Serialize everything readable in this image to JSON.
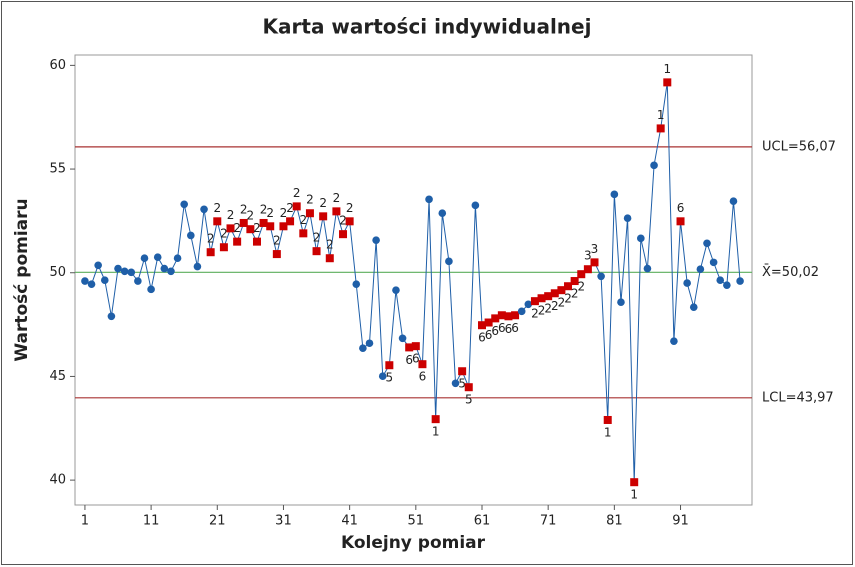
{
  "chart_data": {
    "type": "control",
    "title": "Karta wartości indywidualnej",
    "xlabel": "Kolejny pomiar",
    "ylabel": "Wartość pomiaru",
    "x": [
      1,
      2,
      3,
      4,
      5,
      6,
      7,
      8,
      9,
      10,
      11,
      12,
      13,
      14,
      15,
      16,
      17,
      18,
      19,
      20,
      21,
      22,
      23,
      24,
      25,
      26,
      27,
      28,
      29,
      30,
      31,
      32,
      33,
      34,
      35,
      36,
      37,
      38,
      39,
      40,
      41,
      42,
      43,
      44,
      45,
      46,
      47,
      48,
      49,
      50,
      51,
      52,
      53,
      54,
      55,
      56,
      57,
      58,
      59,
      60,
      61,
      62,
      63,
      64,
      65,
      66,
      67,
      68,
      69,
      70,
      71,
      72,
      73,
      74,
      75,
      76,
      77,
      78,
      79,
      80,
      81,
      82,
      83,
      84,
      85,
      86,
      87,
      88,
      89,
      90,
      91,
      92,
      93,
      94,
      95,
      96,
      97,
      98,
      99,
      100
    ],
    "values": [
      49.6,
      49.45,
      50.36,
      49.64,
      47.9,
      50.2,
      50.07,
      50.02,
      49.6,
      50.7,
      49.2,
      50.75,
      50.2,
      50.07,
      50.7,
      53.3,
      51.8,
      50.3,
      53.06,
      50.99,
      52.48,
      51.23,
      52.14,
      51.5,
      52.4,
      52.1,
      51.5,
      52.4,
      52.24,
      50.9,
      52.24,
      52.48,
      53.2,
      51.9,
      52.87,
      51.04,
      52.72,
      50.7,
      52.96,
      51.86,
      52.48,
      49.45,
      46.36,
      46.6,
      51.57,
      45.01,
      45.54,
      49.16,
      46.84,
      46.4,
      46.46,
      45.59,
      53.54,
      42.94,
      52.87,
      50.55,
      44.67,
      45.25,
      44.48,
      53.25,
      47.47,
      47.6,
      47.8,
      47.95,
      47.9,
      47.95,
      48.14,
      48.48,
      48.63,
      48.77,
      48.87,
      49.01,
      49.16,
      49.35,
      49.6,
      49.93,
      50.17,
      50.5,
      49.83,
      42.9,
      53.78,
      48.58,
      52.63,
      39.9,
      51.66,
      50.2,
      55.18,
      56.96,
      59.18,
      46.7,
      52.48,
      49.5,
      48.34,
      50.17,
      51.42,
      50.5,
      49.64,
      49.4,
      53.45,
      49.6
    ],
    "flags": [
      null,
      null,
      null,
      null,
      null,
      null,
      null,
      null,
      null,
      null,
      null,
      null,
      null,
      null,
      null,
      null,
      null,
      null,
      null,
      "2",
      "2",
      "2",
      "2",
      "2",
      "2",
      "2",
      "2",
      "2",
      "2",
      "2",
      "2",
      "2",
      "2",
      "2",
      "2",
      "2",
      "2",
      "2",
      "2",
      "2",
      "2",
      null,
      null,
      null,
      null,
      null,
      "5",
      null,
      null,
      "6",
      "6",
      "6",
      null,
      "1",
      null,
      null,
      null,
      "5",
      "5",
      null,
      "6",
      "6",
      "6",
      "6",
      "6",
      "6",
      null,
      null,
      "2",
      "2",
      "2",
      "2",
      "2",
      "2",
      "2",
      "2",
      "3",
      "3",
      null,
      "1",
      null,
      null,
      null,
      "1",
      null,
      null,
      null,
      "1",
      "1",
      null,
      "6",
      null,
      null,
      null,
      null,
      null,
      null,
      null,
      null,
      null
    ],
    "color": "#1f5fa8",
    "flag_color": "#cc0000",
    "limits": [
      {
        "label": "UCL=56,07",
        "value": 56.07,
        "color": "#a83232"
      },
      {
        "label": "X̄=50,02",
        "value": 50.02,
        "color": "#5cae5c"
      },
      {
        "label": "LCL=43,97",
        "value": 43.97,
        "color": "#a83232"
      }
    ],
    "xlim": [
      -0.5,
      101.8
    ],
    "ylim": [
      38.8,
      60.5
    ],
    "xticks": [
      1,
      11,
      21,
      31,
      41,
      51,
      61,
      71,
      81,
      91
    ],
    "yticks": [
      40,
      45,
      50,
      55,
      60
    ]
  }
}
